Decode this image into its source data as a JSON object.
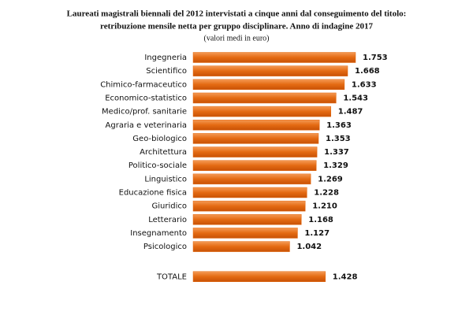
{
  "chart_data": {
    "type": "hbar",
    "title": [
      "Laureati magistrali biennali del 2012 intervistati a cinque anni dal conseguimento del titolo:",
      "retribuzione mensile netta per gruppo disciplinare. Anno di indagine 2017"
    ],
    "subtitle": "(valori medi in euro)",
    "categories": [
      "Ingegneria",
      "Scientifico",
      "Chimico-farmaceutico",
      "Economico-statistico",
      "Medico/prof. sanitarie",
      "Agraria e veterinaria",
      "Geo-biologico",
      "Architettura",
      "Politico-sociale",
      "Linguistico",
      "Educazione fisica",
      "Giuridico",
      "Letterario",
      "Insegnamento",
      "Psicologico",
      "TOTALE"
    ],
    "values": [
      1753,
      1668,
      1633,
      1543,
      1487,
      1363,
      1353,
      1337,
      1329,
      1269,
      1228,
      1210,
      1168,
      1127,
      1042,
      1428
    ],
    "value_labels": [
      "1.753",
      "1.668",
      "1.633",
      "1.543",
      "1.487",
      "1.363",
      "1.353",
      "1.337",
      "1.329",
      "1.269",
      "1.228",
      "1.210",
      "1.168",
      "1.127",
      "1.042",
      "1.428"
    ],
    "color": "#e4680f"
  }
}
